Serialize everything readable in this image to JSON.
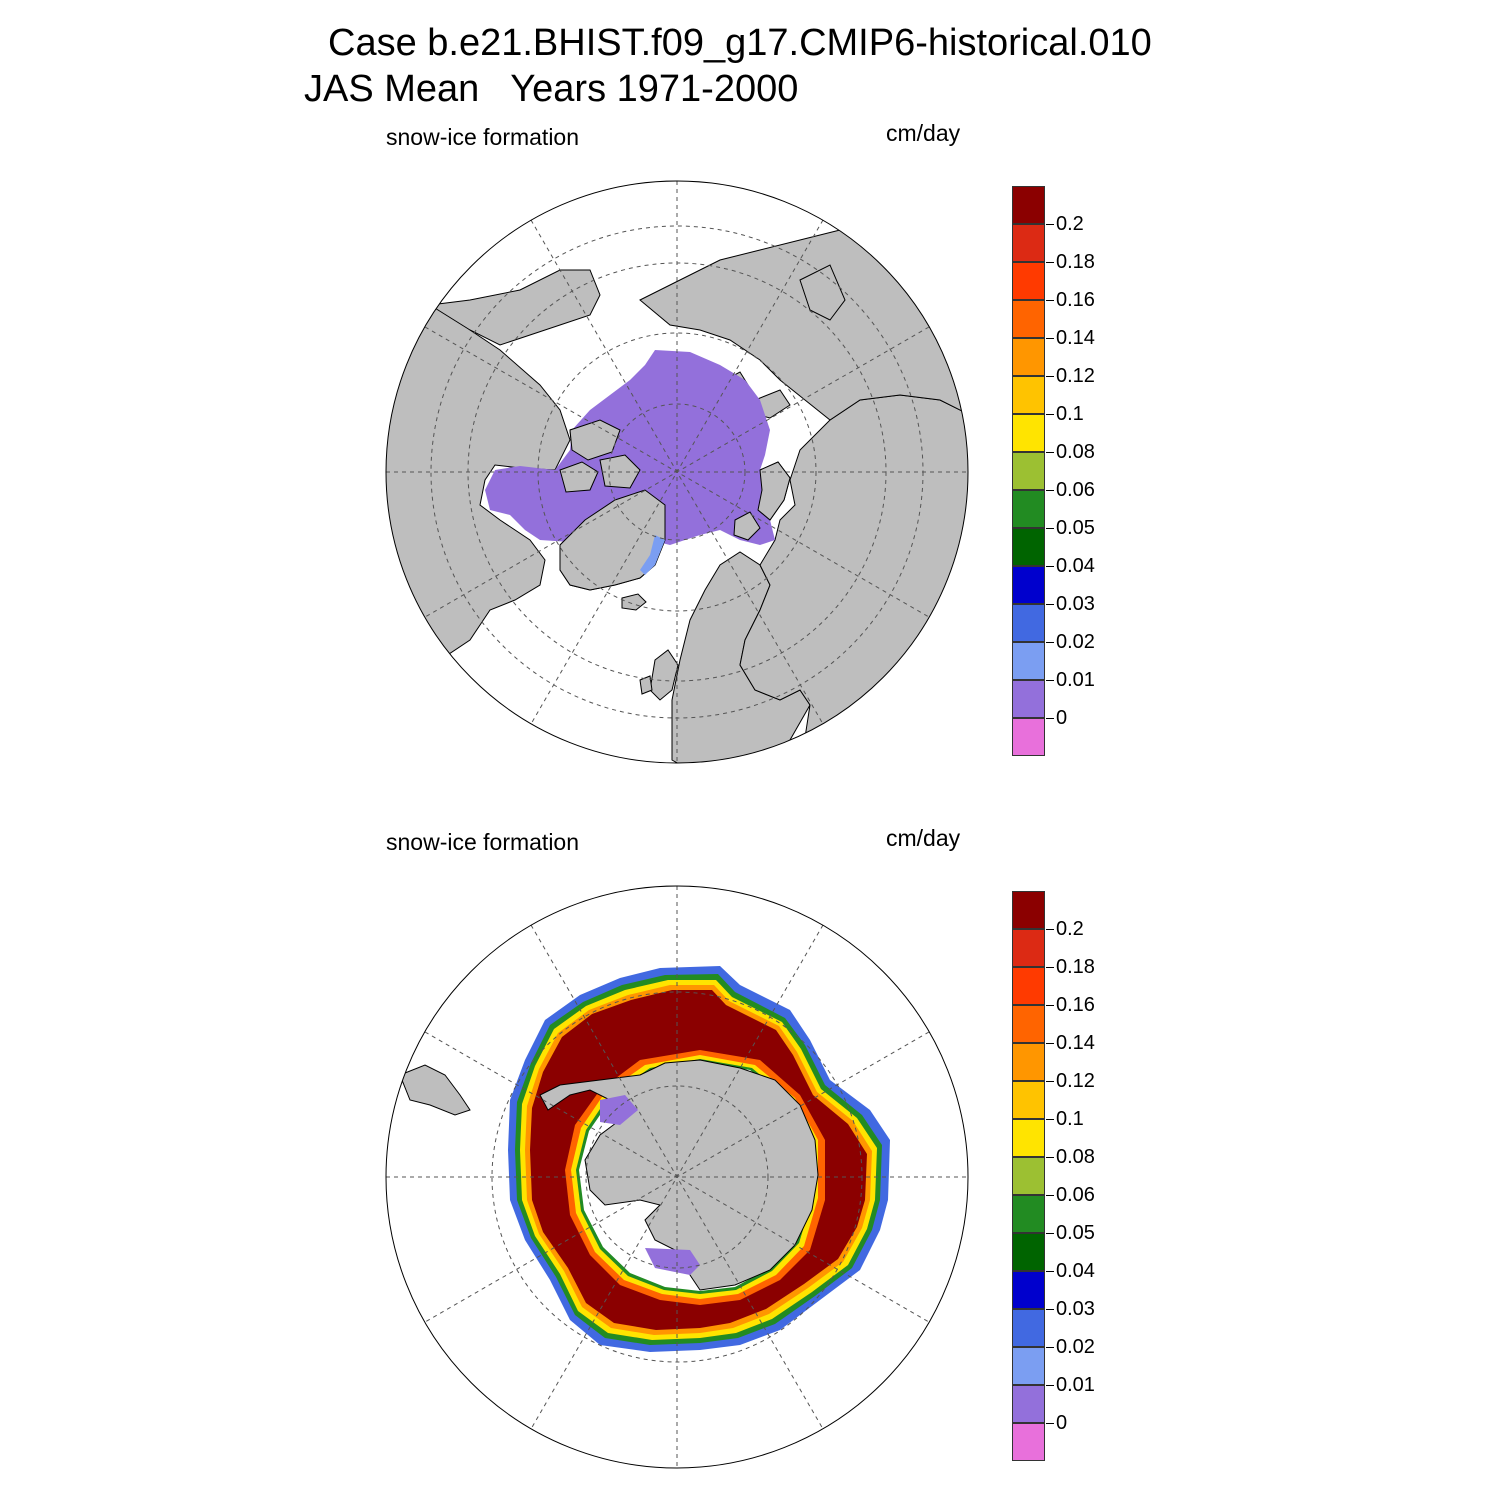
{
  "title": {
    "line1": "Case b.e21.BHIST.f09_g17.CMIP6-historical.010",
    "line2": "JAS Mean   Years 1971-2000"
  },
  "panels": [
    {
      "id": "north",
      "hemisphere": "Northern (Arctic)",
      "variable_label": "snow-ice formation",
      "units_label": "cm/day",
      "dominant_value_cm_per_day": "0 - 0.01"
    },
    {
      "id": "south",
      "hemisphere": "Southern (Antarctic)",
      "variable_label": "snow-ice formation",
      "units_label": "cm/day",
      "dominant_value_cm_per_day": "> 0.2"
    }
  ],
  "colorbar": {
    "levels": [
      "0.2",
      "0.18",
      "0.16",
      "0.14",
      "0.12",
      "0.1",
      "0.08",
      "0.06",
      "0.05",
      "0.04",
      "0.03",
      "0.02",
      "0.01",
      "0"
    ],
    "colors": [
      "#8b0000",
      "#dc2a14",
      "#ff3a00",
      "#ff6400",
      "#ff9600",
      "#ffc300",
      "#ffe400",
      "#9cc032",
      "#228b22",
      "#006400",
      "#0000cd",
      "#4169e1",
      "#7b9ef2",
      "#9370db",
      "#e870db"
    ]
  },
  "map_colors": {
    "land": "#bebebe",
    "ocean": "#ffffff",
    "coast": "#000000",
    "grid": "#555555"
  }
}
